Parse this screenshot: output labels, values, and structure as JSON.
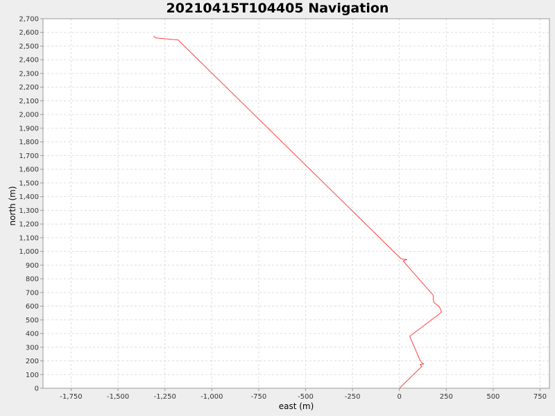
{
  "chart_data": {
    "type": "line",
    "title": "20210415T104405 Navigation",
    "xlabel": "east (m)",
    "ylabel": "north (m)",
    "xlim": [
      -1900,
      800
    ],
    "ylim": [
      0,
      2700
    ],
    "grid": true,
    "legend": "none",
    "x_ticks": [
      -1750,
      -1500,
      -1250,
      -1000,
      -750,
      -500,
      -250,
      0,
      250,
      500,
      750
    ],
    "x_tick_labels": [
      "-1,750",
      "-1,500",
      "-1,250",
      "-1,000",
      "-750",
      "-500",
      "-250",
      "0",
      "250",
      "500",
      "750"
    ],
    "y_ticks": [
      0,
      100,
      200,
      300,
      400,
      500,
      600,
      700,
      800,
      900,
      1000,
      1100,
      1200,
      1300,
      1400,
      1500,
      1600,
      1700,
      1800,
      1900,
      2000,
      2100,
      2200,
      2300,
      2400,
      2500,
      2600,
      2700
    ],
    "y_tick_labels": [
      "0",
      "100",
      "200",
      "300",
      "400",
      "500",
      "600",
      "700",
      "800",
      "900",
      "1,000",
      "1,100",
      "1,200",
      "1,300",
      "1,400",
      "1,500",
      "1,600",
      "1,700",
      "1,800",
      "1,900",
      "2,000",
      "2,100",
      "2,200",
      "2,300",
      "2,400",
      "2,500",
      "2,600",
      "2,700"
    ],
    "series": [
      {
        "color": "#ff4040",
        "points": [
          [
            0,
            0
          ],
          [
            120,
            160
          ],
          [
            110,
            172
          ],
          [
            130,
            178
          ],
          [
            120,
            185
          ],
          [
            110,
            205
          ],
          [
            55,
            380
          ],
          [
            225,
            555
          ],
          [
            215,
            590
          ],
          [
            200,
            610
          ],
          [
            185,
            625
          ],
          [
            180,
            650
          ],
          [
            182,
            665
          ],
          [
            180,
            680
          ],
          [
            20,
            930
          ],
          [
            40,
            940
          ],
          [
            10,
            945
          ],
          [
            -1180,
            2545
          ],
          [
            -1300,
            2560
          ],
          [
            -1310,
            2575
          ]
        ]
      }
    ]
  }
}
